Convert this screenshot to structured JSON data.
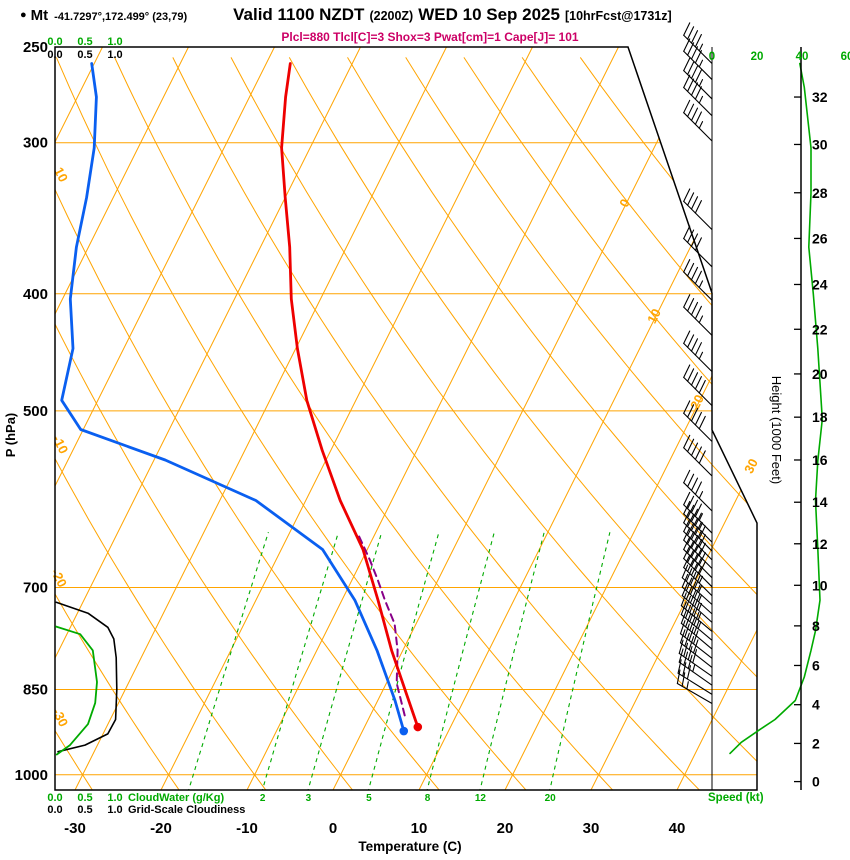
{
  "header": {
    "bullet": "●",
    "station": "Mt",
    "coords": "-41.7297°,172.499° (23,79)",
    "valid_prefix": "Valid 1100 NZDT",
    "valid_z": "(2200Z)",
    "valid_date": "WED 10 Sep 2025",
    "fcst": "[10hrFcst@1731z]",
    "params_line": "Plcl=880 Tlcl[C]=3 Shox=3 Pwat[cm]=1 Cape[J]= 101"
  },
  "axes": {
    "pressure": {
      "label": "P (hPa)",
      "ticks": [
        250,
        300,
        400,
        500,
        700,
        850,
        1000
      ]
    },
    "temperature": {
      "label": "Temperature (C)",
      "ticks": [
        -30,
        -20,
        -10,
        0,
        10,
        20,
        30,
        40
      ]
    },
    "height": {
      "label": "Height (1000 Feet)",
      "ticks": [
        0,
        2,
        4,
        6,
        8,
        10,
        12,
        14,
        16,
        18,
        20,
        22,
        24,
        26,
        28,
        30,
        32
      ],
      "tick_pressures": [
        1013,
        942,
        875,
        812,
        753,
        697,
        644,
        595,
        549,
        506,
        466,
        428,
        393,
        360,
        330,
        301,
        275
      ]
    },
    "speed": {
      "label": "Speed (kt)",
      "ticks": [
        0,
        20,
        40,
        60
      ]
    },
    "cloudwater_scale": {
      "label": "CloudWater (g/Kg)",
      "ticks": [
        0.0,
        0.5,
        1.0
      ]
    },
    "cloudiness_scale": {
      "label": "Grid-Scale Cloudiness",
      "ticks": [
        0.0,
        0.5,
        1.0
      ]
    }
  },
  "grid": {
    "isotherm_labels": [
      {
        "value": 0,
        "y": 205
      },
      {
        "value": 10,
        "y": 318
      },
      {
        "value": 20,
        "y": 404
      },
      {
        "value": 30,
        "y": 468
      }
    ],
    "adiabat_labels": [
      10,
      -10,
      -20,
      -30
    ],
    "mixing_ratio_lines": [
      1,
      2,
      3,
      5,
      8,
      12,
      20
    ],
    "mixing_ratio_labels": [
      2,
      3,
      5,
      8,
      12,
      20
    ]
  },
  "colors": {
    "grid_orange": "#FFA400",
    "green": "#00AA00",
    "temperature_red": "#EE0000",
    "dewpoint_blue": "#0A5FF0",
    "parcel_purple": "#880088",
    "cloudiness_black": "#000000",
    "header_magenta": "#CC0066"
  },
  "chart_data": {
    "type": "line",
    "subtype": "skewt_log_p_sounding",
    "pressure_range_hpa": [
      250,
      1030
    ],
    "temp_axis_range_c": [
      -35,
      45
    ],
    "series": {
      "temperature_c": [
        [
          913,
          6.2
        ],
        [
          868,
          3.6
        ],
        [
          789,
          -1.3
        ],
        [
          717,
          -5.8
        ],
        [
          651,
          -10.5
        ],
        [
          593,
          -16.0
        ],
        [
          539,
          -21.0
        ],
        [
          490,
          -25.7
        ],
        [
          444,
          -29.8
        ],
        [
          404,
          -33.4
        ],
        [
          366,
          -36.6
        ],
        [
          333,
          -40.0
        ],
        [
          303,
          -43.3
        ],
        [
          275,
          -45.8
        ],
        [
          258,
          -47.2
        ]
      ],
      "dewpoint_c": [
        [
          920,
          4.8
        ],
        [
          868,
          2.0
        ],
        [
          789,
          -3.0
        ],
        [
          717,
          -8.5
        ],
        [
          651,
          -15.2
        ],
        [
          593,
          -25.8
        ],
        [
          549,
          -38.7
        ],
        [
          518,
          -50.3
        ],
        [
          490,
          -54.2
        ],
        [
          444,
          -55.9
        ],
        [
          404,
          -59.1
        ],
        [
          366,
          -61.4
        ],
        [
          333,
          -63.1
        ],
        [
          303,
          -65.1
        ],
        [
          275,
          -67.8
        ],
        [
          258,
          -70.3
        ]
      ],
      "parcel_path_c": [
        [
          893,
          4.0
        ],
        [
          840,
          1.2
        ],
        [
          789,
          -0.6
        ],
        [
          750,
          -2.5
        ],
        [
          717,
          -5.0
        ],
        [
          690,
          -7.0
        ],
        [
          664,
          -9.1
        ],
        [
          633,
          -11.9
        ]
      ],
      "cloud_water_gkg": [
        [
          754,
          0.02
        ],
        [
          765,
          0.42
        ],
        [
          789,
          0.63
        ],
        [
          838,
          0.7
        ],
        [
          872,
          0.67
        ],
        [
          908,
          0.55
        ],
        [
          945,
          0.25
        ],
        [
          962,
          0.03
        ]
      ],
      "grid_scale_cloudiness": [
        [
          720,
          0.02
        ],
        [
          735,
          0.55
        ],
        [
          755,
          0.88
        ],
        [
          772,
          0.98
        ],
        [
          800,
          1.02
        ],
        [
          850,
          1.03
        ],
        [
          900,
          1.01
        ],
        [
          925,
          0.88
        ],
        [
          945,
          0.5
        ],
        [
          957,
          0.05
        ]
      ],
      "wind_speed_kt": [
        [
          258,
          39
        ],
        [
          270,
          41
        ],
        [
          303,
          44
        ],
        [
          330,
          44
        ],
        [
          366,
          43
        ],
        [
          400,
          45
        ],
        [
          444,
          47
        ],
        [
          508,
          49
        ],
        [
          550,
          47
        ],
        [
          593,
          46
        ],
        [
          650,
          47
        ],
        [
          717,
          48
        ],
        [
          760,
          46
        ],
        [
          789,
          44
        ],
        [
          830,
          41
        ],
        [
          868,
          37
        ],
        [
          900,
          28
        ],
        [
          918,
          21
        ],
        [
          940,
          13
        ],
        [
          960,
          8
        ]
      ],
      "wind_barbs": [
        [
          258,
          45,
          315
        ],
        [
          266,
          45,
          315
        ],
        [
          276,
          45,
          315
        ],
        [
          285,
          45,
          315
        ],
        [
          299,
          45,
          315
        ],
        [
          354,
          40,
          315
        ],
        [
          380,
          42,
          315
        ],
        [
          405,
          43,
          315
        ],
        [
          433,
          45,
          315
        ],
        [
          464,
          47,
          315
        ],
        [
          495,
          48,
          315
        ],
        [
          530,
          49,
          315
        ],
        [
          566,
          48,
          315
        ],
        [
          605,
          47,
          315
        ],
        [
          631,
          47,
          315
        ],
        [
          642,
          47,
          315
        ],
        [
          653,
          48,
          315
        ],
        [
          664,
          48,
          315
        ],
        [
          675,
          48,
          315
        ],
        [
          687,
          48,
          315
        ],
        [
          699,
          48,
          315
        ],
        [
          711,
          47,
          315
        ],
        [
          723,
          47,
          312
        ],
        [
          736,
          46,
          312
        ],
        [
          748,
          45,
          312
        ],
        [
          761,
          44,
          310
        ],
        [
          774,
          43,
          310
        ],
        [
          787,
          42,
          310
        ],
        [
          801,
          41,
          308
        ],
        [
          815,
          40,
          308
        ],
        [
          829,
          38,
          305
        ],
        [
          843,
          35,
          305
        ],
        [
          858,
          30,
          302
        ],
        [
          873,
          25,
          300
        ]
      ]
    }
  }
}
